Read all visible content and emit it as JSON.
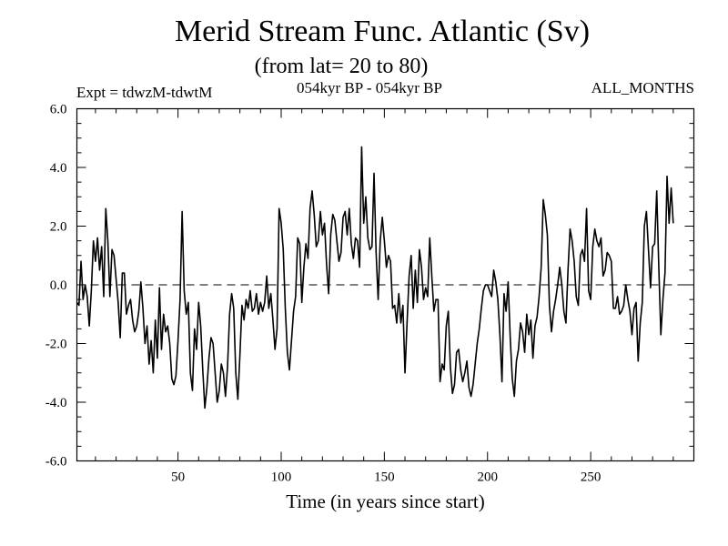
{
  "header": {
    "title": "Merid Stream Func. Atlantic (Sv)",
    "subtitle": "(from lat= 20 to 80)",
    "expt": "Expt = tdwzM-tdwtM",
    "period": "054kyr BP - 054kyr BP",
    "months": "ALL_MONTHS"
  },
  "chart_data": {
    "type": "line",
    "title": "Merid Stream Func. Atlantic (Sv)",
    "subtitle": "(from lat= 20 to 80)",
    "xlabel": "Time (in years since start)",
    "ylabel": "",
    "xlim": [
      1,
      300
    ],
    "ylim": [
      -6,
      6
    ],
    "x_ticks": [
      50,
      100,
      150,
      200,
      250
    ],
    "y_ticks": [
      -6,
      -4,
      -2,
      0,
      2,
      4,
      6
    ],
    "y_tick_labels": [
      "-6.0",
      "-4.0",
      "-2.0",
      "0.0",
      "2.0",
      "4.0",
      "6.0"
    ],
    "x_minor_step": 10,
    "y_minor_step": 0.5,
    "reference_line": {
      "y": 0,
      "style": "dashed"
    },
    "grid": false,
    "series": [
      {
        "x_start": 1,
        "x_step": 1,
        "color": "#000000",
        "values": [
          -0.6,
          -0.7,
          0.8,
          -0.5,
          0.0,
          -0.4,
          -1.4,
          -0.2,
          1.5,
          0.8,
          1.6,
          0.5,
          1.3,
          -0.4,
          2.6,
          1.5,
          -0.4,
          1.2,
          1.0,
          0.2,
          -0.6,
          -1.8,
          0.4,
          0.4,
          -1.0,
          -0.7,
          -0.5,
          -1.2,
          -1.6,
          -1.4,
          -0.9,
          0.1,
          -0.8,
          -2.0,
          -1.4,
          -2.7,
          -1.9,
          -3.0,
          -1.2,
          -2.5,
          -0.1,
          -2.2,
          -1.0,
          -1.6,
          -1.4,
          -2.0,
          -3.2,
          -3.4,
          -3.1,
          -1.9,
          -0.5,
          2.5,
          -0.2,
          -1.0,
          -0.6,
          -3.0,
          -3.6,
          -1.5,
          -2.2,
          -0.6,
          -1.4,
          -2.9,
          -4.2,
          -3.5,
          -2.5,
          -1.8,
          -2.0,
          -3.0,
          -4.0,
          -3.6,
          -2.7,
          -3.0,
          -3.8,
          -2.8,
          -1.0,
          -0.3,
          -0.8,
          -3.0,
          -3.9,
          -2.4,
          -0.7,
          -1.2,
          -0.5,
          -0.8,
          -0.2,
          -0.9,
          -0.8,
          -0.3,
          -1.0,
          -0.6,
          -0.9,
          -0.6,
          0.3,
          -0.8,
          -0.3,
          -1.2,
          -2.2,
          -1.5,
          2.6,
          2.1,
          1.2,
          -0.8,
          -2.3,
          -2.9,
          -1.9,
          -0.9,
          -0.4,
          1.6,
          1.4,
          -0.6,
          0.6,
          1.4,
          0.9,
          2.6,
          3.2,
          2.4,
          1.3,
          1.5,
          2.5,
          1.7,
          2.1,
          0.7,
          -0.3,
          1.7,
          2.4,
          2.2,
          1.5,
          0.8,
          1.1,
          2.3,
          2.5,
          1.7,
          2.6,
          1.4,
          0.9,
          1.6,
          1.5,
          0.6,
          4.7,
          2.1,
          3.0,
          1.6,
          1.2,
          1.3,
          3.8,
          1.1,
          -0.5,
          1.5,
          2.3,
          1.5,
          0.6,
          1.0,
          0.8,
          -0.8,
          -0.7,
          -1.3,
          -0.3,
          -1.3,
          -0.7,
          -3.0,
          -1.3,
          0.3,
          1.0,
          -0.8,
          0.5,
          -0.6,
          1.2,
          0.6,
          -0.5,
          -0.1,
          -0.4,
          1.6,
          0.3,
          -0.9,
          -0.5,
          -0.5,
          -3.3,
          -2.7,
          -2.9,
          -1.4,
          -0.9,
          -2.8,
          -3.7,
          -3.4,
          -2.3,
          -2.2,
          -2.9,
          -3.3,
          -3.0,
          -2.6,
          -3.5,
          -3.8,
          -3.4,
          -2.7,
          -2.0,
          -1.5,
          -0.8,
          -0.2,
          0.0,
          0.0,
          -0.2,
          -0.4,
          0.5,
          0.1,
          -0.5,
          -1.7,
          -3.3,
          -0.3,
          -0.9,
          0.1,
          -1.8,
          -3.2,
          -3.8,
          -2.6,
          -2.2,
          -1.3,
          -1.6,
          -2.3,
          -1.0,
          -1.7,
          -1.2,
          -2.5,
          -1.4,
          -1.1,
          -0.4,
          0.6,
          2.9,
          2.4,
          1.7,
          -0.7,
          -1.6,
          -0.9,
          -0.5,
          0.0,
          0.6,
          0.0,
          -0.9,
          -1.3,
          0.5,
          1.9,
          1.5,
          0.8,
          -0.4,
          -0.7,
          1.0,
          1.2,
          0.8,
          2.6,
          -0.2,
          -0.5,
          1.3,
          1.9,
          1.5,
          1.3,
          1.6,
          0.3,
          0.5,
          1.1,
          1.0,
          0.8,
          -0.8,
          -0.8,
          -0.4,
          -1.0,
          -0.9,
          -0.7,
          0.0,
          -0.5,
          -0.9,
          -1.7,
          -0.8,
          -0.6,
          -2.6,
          -1.3,
          -0.6,
          2.0,
          2.5,
          1.2,
          -0.1,
          1.3,
          1.4,
          3.2,
          0.6,
          -1.7,
          -0.5,
          0.4,
          3.7,
          2.1,
          3.3,
          2.1
        ]
      }
    ]
  }
}
